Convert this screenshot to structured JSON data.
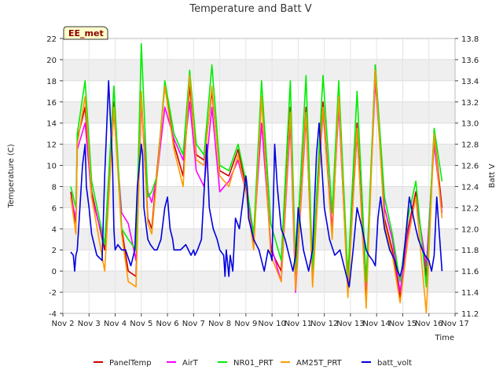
{
  "chart_data": {
    "type": "line",
    "title": "Temperature and Batt V",
    "site_label": "EE_met",
    "xlabel": "Time",
    "ylabel_left": "Temperature (C)",
    "ylabel_right": "Batt V",
    "xlim": [
      2,
      17
    ],
    "ylim_left": [
      -4,
      22
    ],
    "ylim_right": [
      11.2,
      13.8
    ],
    "x_ticks": [
      {
        "x": 2,
        "label": "Nov 2"
      },
      {
        "x": 3,
        "label": "Nov 3"
      },
      {
        "x": 4,
        "label": "Nov 4"
      },
      {
        "x": 5,
        "label": "Nov 5"
      },
      {
        "x": 6,
        "label": "Nov 6"
      },
      {
        "x": 7,
        "label": "Nov 7"
      },
      {
        "x": 8,
        "label": "Nov 8"
      },
      {
        "x": 9,
        "label": "Nov 9"
      },
      {
        "x": 10,
        "label": "Nov 10"
      },
      {
        "x": 11,
        "label": "Nov 11"
      },
      {
        "x": 12,
        "label": "Nov 12"
      },
      {
        "x": 13,
        "label": "Nov 13"
      },
      {
        "x": 14,
        "label": "Nov 14"
      },
      {
        "x": 15,
        "label": "Nov 15"
      },
      {
        "x": 16,
        "label": "Nov 16"
      },
      {
        "x": 17,
        "label": "Nov 17"
      }
    ],
    "y_ticks_left": [
      -4,
      -2,
      0,
      2,
      4,
      6,
      8,
      10,
      12,
      14,
      16,
      18,
      20,
      22
    ],
    "y_ticks_right": [
      11.2,
      11.4,
      11.6,
      11.8,
      12.0,
      12.2,
      12.4,
      12.6,
      12.8,
      13.0,
      13.2,
      13.4,
      13.6,
      13.8
    ],
    "grid": true,
    "banded_background": true,
    "legend_position": "bottom",
    "series": [
      {
        "name": "PanelTemp",
        "color": "#cc0000",
        "axis": "left",
        "x": [
          2.3,
          2.5,
          2.55,
          2.85,
          3.1,
          3.6,
          3.95,
          4.25,
          4.5,
          4.8,
          5.0,
          5.25,
          5.4,
          5.6,
          5.9,
          6.25,
          6.6,
          6.85,
          7.1,
          7.4,
          7.7,
          8.0,
          8.35,
          8.7,
          9.0,
          9.3,
          9.6,
          9.95,
          10.35,
          10.7,
          10.9,
          11.3,
          11.55,
          11.95,
          12.3,
          12.55,
          12.9,
          13.25,
          13.6,
          13.95,
          14.3,
          14.6,
          14.9,
          15.2,
          15.5,
          15.9,
          16.2,
          16.5
        ],
        "y": [
          7.5,
          4.5,
          12.5,
          15.5,
          7.5,
          2.0,
          16.0,
          4.0,
          0.0,
          -0.5,
          16.5,
          5.0,
          4.0,
          9.5,
          17.5,
          12.0,
          9.0,
          17.5,
          11.0,
          10.5,
          17.0,
          9.5,
          9.0,
          11.5,
          8.0,
          2.5,
          16.5,
          2.0,
          0.0,
          15.5,
          -1.5,
          15.5,
          -1.0,
          16.0,
          3.5,
          16.5,
          -2.0,
          14.0,
          -2.5,
          19.5,
          5.0,
          2.0,
          -2.5,
          4.0,
          7.5,
          -0.5,
          13.0,
          6.0
        ]
      },
      {
        "name": "AirT",
        "color": "#ff00ff",
        "axis": "left",
        "x": [
          2.3,
          2.5,
          2.55,
          2.85,
          3.1,
          3.6,
          3.95,
          4.25,
          4.5,
          4.8,
          5.0,
          5.25,
          5.4,
          5.6,
          5.9,
          6.25,
          6.6,
          6.85,
          7.1,
          7.4,
          7.7,
          8.0,
          8.35,
          8.7,
          9.0,
          9.3,
          9.6,
          9.95,
          10.35,
          10.7,
          10.9,
          11.3,
          11.55,
          11.95,
          12.3,
          12.55,
          12.9,
          13.25,
          13.6,
          13.95,
          14.3,
          14.6,
          14.9,
          15.2,
          15.5,
          15.9,
          16.2,
          16.5
        ],
        "y": [
          7.0,
          5.0,
          11.5,
          14.0,
          7.0,
          2.5,
          15.0,
          5.5,
          4.5,
          1.0,
          16.0,
          7.5,
          6.5,
          9.0,
          15.5,
          12.5,
          10.5,
          16.0,
          9.5,
          8.0,
          15.5,
          7.5,
          8.5,
          10.5,
          7.5,
          3.0,
          14.0,
          2.5,
          -1.0,
          14.0,
          -2.0,
          14.5,
          -0.5,
          15.0,
          4.0,
          15.5,
          -1.5,
          13.0,
          -1.5,
          18.0,
          6.0,
          3.0,
          -2.0,
          3.5,
          7.0,
          0.5,
          12.0,
          5.5
        ]
      },
      {
        "name": "NR01_PRT",
        "color": "#00ee00",
        "axis": "left",
        "x": [
          2.3,
          2.5,
          2.55,
          2.85,
          3.1,
          3.6,
          3.95,
          4.25,
          4.5,
          4.8,
          5.0,
          5.25,
          5.4,
          5.6,
          5.9,
          6.25,
          6.6,
          6.85,
          7.1,
          7.4,
          7.7,
          8.0,
          8.35,
          8.7,
          9.0,
          9.3,
          9.6,
          9.95,
          10.35,
          10.7,
          10.9,
          11.3,
          11.55,
          11.95,
          12.3,
          12.55,
          12.9,
          13.25,
          13.6,
          13.95,
          14.3,
          14.6,
          14.9,
          15.2,
          15.5,
          15.9,
          16.2,
          16.5
        ],
        "y": [
          8.0,
          6.0,
          13.0,
          18.0,
          8.5,
          2.5,
          17.5,
          4.0,
          3.0,
          2.0,
          21.5,
          7.0,
          7.5,
          9.0,
          18.0,
          13.0,
          11.0,
          19.0,
          12.0,
          11.0,
          19.5,
          10.0,
          9.5,
          12.0,
          8.5,
          3.5,
          18.0,
          4.5,
          1.0,
          18.0,
          0.0,
          18.5,
          0.0,
          18.5,
          5.5,
          18.0,
          -0.5,
          17.0,
          -1.0,
          19.5,
          7.0,
          3.5,
          -1.0,
          5.0,
          8.5,
          -1.5,
          13.5,
          8.5
        ]
      },
      {
        "name": "AM25T_PRT",
        "color": "#ff9900",
        "axis": "left",
        "x": [
          2.3,
          2.5,
          2.55,
          2.85,
          3.1,
          3.6,
          3.95,
          4.25,
          4.5,
          4.8,
          5.0,
          5.25,
          5.4,
          5.6,
          5.9,
          6.25,
          6.6,
          6.85,
          7.1,
          7.4,
          7.7,
          8.0,
          8.35,
          8.7,
          9.0,
          9.3,
          9.6,
          9.95,
          10.35,
          10.7,
          10.9,
          11.3,
          11.55,
          11.95,
          12.3,
          12.55,
          12.9,
          13.25,
          13.6,
          13.95,
          14.3,
          14.6,
          14.9,
          15.2,
          15.5,
          15.9,
          16.2,
          16.5
        ],
        "y": [
          7.0,
          3.5,
          12.0,
          16.5,
          7.0,
          0.0,
          15.5,
          3.5,
          -1.0,
          -1.5,
          17.0,
          4.5,
          3.5,
          9.0,
          17.5,
          11.5,
          8.0,
          18.5,
          10.5,
          10.0,
          17.5,
          9.0,
          8.0,
          11.0,
          7.5,
          2.0,
          16.5,
          1.5,
          -1.0,
          15.0,
          -1.8,
          15.0,
          -1.5,
          15.5,
          3.0,
          16.5,
          -2.5,
          13.5,
          -3.5,
          19.0,
          4.5,
          1.5,
          -3.0,
          3.0,
          7.0,
          -4.0,
          13.0,
          5.0
        ]
      },
      {
        "name": "batt_volt",
        "color": "#0000dd",
        "axis": "right",
        "x": [
          2.3,
          2.4,
          2.45,
          2.5,
          2.55,
          2.6,
          2.75,
          2.85,
          2.9,
          3.0,
          3.1,
          3.3,
          3.5,
          3.6,
          3.75,
          3.9,
          3.95,
          4.0,
          4.1,
          4.25,
          4.4,
          4.6,
          4.75,
          4.85,
          5.0,
          5.05,
          5.1,
          5.25,
          5.35,
          5.5,
          5.6,
          5.75,
          5.9,
          6.0,
          6.1,
          6.2,
          6.25,
          6.35,
          6.5,
          6.7,
          6.9,
          7.0,
          7.05,
          7.15,
          7.3,
          7.5,
          7.6,
          7.75,
          7.9,
          8.0,
          8.15,
          8.2,
          8.25,
          8.35,
          8.4,
          8.5,
          8.6,
          8.75,
          9.0,
          9.05,
          9.1,
          9.3,
          9.5,
          9.7,
          9.85,
          9.95,
          10.0,
          10.1,
          10.2,
          10.35,
          10.5,
          10.7,
          10.8,
          10.9,
          11.0,
          11.2,
          11.4,
          11.55,
          11.7,
          11.8,
          11.85,
          12.0,
          12.2,
          12.4,
          12.6,
          12.8,
          12.95,
          13.1,
          13.25,
          13.45,
          13.6,
          13.7,
          13.85,
          13.95,
          14.05,
          14.15,
          14.3,
          14.5,
          14.7,
          14.8,
          14.9,
          15.0,
          15.1,
          15.25,
          15.5,
          15.6,
          15.75,
          15.85,
          16.0,
          16.1,
          16.2,
          16.3,
          16.5
        ],
        "y": [
          11.78,
          11.75,
          11.6,
          11.75,
          11.8,
          12.0,
          12.6,
          12.8,
          12.4,
          12.2,
          11.95,
          11.75,
          11.7,
          12.5,
          13.4,
          12.6,
          12.0,
          11.8,
          11.85,
          11.8,
          11.8,
          11.65,
          11.8,
          12.4,
          12.8,
          12.7,
          12.2,
          11.9,
          11.85,
          11.8,
          11.8,
          11.9,
          12.2,
          12.3,
          12.0,
          11.9,
          11.8,
          11.8,
          11.8,
          11.85,
          11.75,
          11.8,
          11.75,
          11.8,
          11.9,
          12.8,
          12.2,
          12.0,
          11.9,
          11.8,
          11.75,
          11.55,
          11.8,
          11.55,
          11.75,
          11.6,
          12.1,
          12.0,
          12.5,
          12.4,
          12.1,
          11.9,
          11.8,
          11.6,
          11.8,
          11.75,
          11.7,
          12.8,
          12.4,
          12.0,
          11.9,
          11.7,
          11.6,
          11.75,
          12.2,
          11.8,
          11.6,
          11.8,
          12.7,
          13.0,
          12.8,
          12.2,
          11.9,
          11.75,
          11.8,
          11.6,
          11.45,
          11.8,
          12.2,
          12.0,
          11.8,
          11.75,
          11.7,
          11.65,
          12.1,
          12.3,
          12.0,
          11.8,
          11.7,
          11.6,
          11.55,
          11.65,
          11.9,
          12.3,
          12.0,
          11.9,
          11.8,
          11.75,
          11.7,
          11.6,
          11.75,
          12.3,
          11.6
        ]
      }
    ]
  }
}
